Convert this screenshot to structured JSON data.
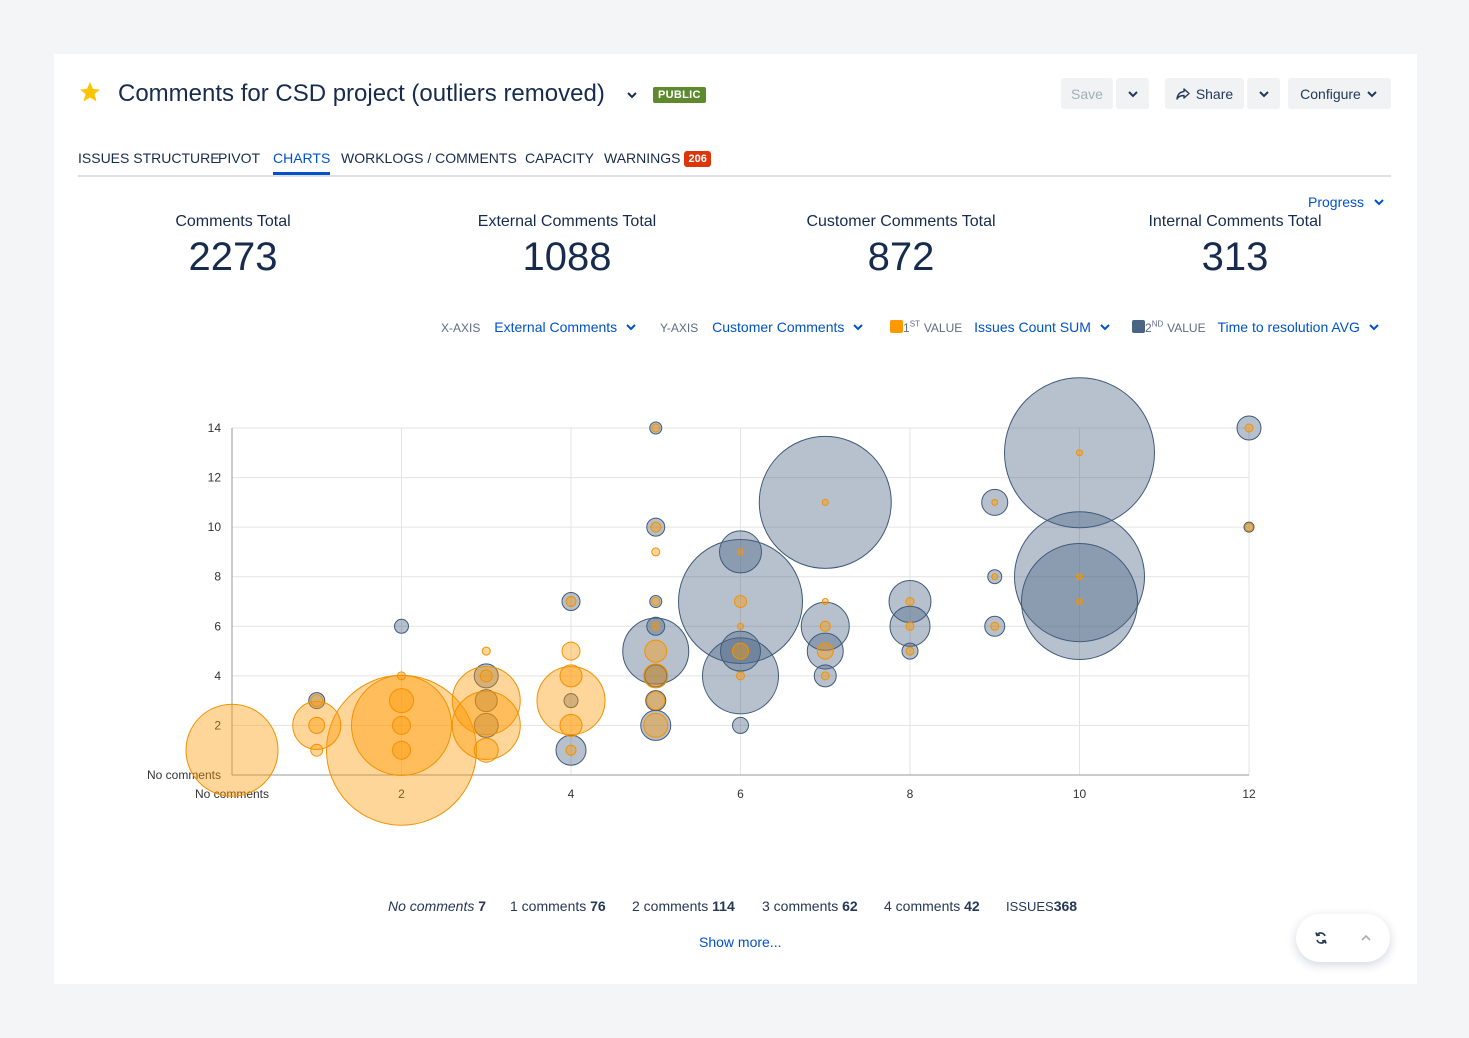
{
  "page": {
    "title": "Comments for CSD project (outliers removed)",
    "visibility_badge": "PUBLIC"
  },
  "toolbar": {
    "save_label": "Save",
    "share_label": "Share",
    "configure_label": "Configure"
  },
  "tabs": [
    {
      "label": "ISSUES STRUCTURE"
    },
    {
      "label": "PIVOT"
    },
    {
      "label": "CHARTS",
      "active": true
    },
    {
      "label": "WORKLOGS / COMMENTS"
    },
    {
      "label": "CAPACITY"
    },
    {
      "label": "WARNINGS",
      "badge": "206"
    }
  ],
  "view_selector": {
    "label": "Progress"
  },
  "stats": [
    {
      "label": "Comments Total",
      "value": "2273"
    },
    {
      "label": "External Comments Total",
      "value": "1088"
    },
    {
      "label": "Customer Comments Total",
      "value": "872"
    },
    {
      "label": "Internal Comments Total",
      "value": "313"
    }
  ],
  "axes_controls": {
    "x_caption": "X-AXIS",
    "x_value": "External Comments",
    "y_caption": "Y-AXIS",
    "y_value": "Customer Comments",
    "v1_num": "1",
    "v1_sup": "ST",
    "v1_caption": "VALUE",
    "v1_value": "Issues Count SUM",
    "v1_color": "#ff9900",
    "v2_num": "2",
    "v2_sup": "ND",
    "v2_caption": "VALUE",
    "v2_value": "Time to resolution AVG",
    "v2_color": "#4a6484"
  },
  "chart_data": {
    "type": "scatter",
    "subtype": "bubble",
    "xlim": [
      0,
      12
    ],
    "ylim": [
      0,
      14
    ],
    "x_ticks": [
      "No comments",
      "2",
      "4",
      "6",
      "8",
      "10",
      "12"
    ],
    "y_ticks": [
      "No comments",
      "2",
      "4",
      "6",
      "8",
      "10",
      "12",
      "14"
    ],
    "grid": true,
    "series": [
      {
        "name": "Time to resolution AVG",
        "color": "#4a6484",
        "points": [
          [
            1,
            3,
            8
          ],
          [
            2,
            6,
            7
          ],
          [
            3,
            4,
            12
          ],
          [
            3,
            3,
            11
          ],
          [
            3,
            2,
            12
          ],
          [
            4,
            7,
            9
          ],
          [
            4,
            1,
            15
          ],
          [
            4,
            3,
            7
          ],
          [
            5,
            14,
            6
          ],
          [
            5,
            10,
            9
          ],
          [
            5,
            7,
            6
          ],
          [
            5,
            6,
            9
          ],
          [
            5,
            5,
            33
          ],
          [
            5,
            4,
            11
          ],
          [
            5,
            3,
            10
          ],
          [
            5,
            2,
            15
          ],
          [
            6,
            9,
            21
          ],
          [
            6,
            7,
            62
          ],
          [
            6,
            5,
            20
          ],
          [
            6,
            4,
            38
          ],
          [
            6,
            2,
            8
          ],
          [
            7,
            11,
            66
          ],
          [
            7,
            6,
            24
          ],
          [
            7,
            5,
            18
          ],
          [
            7,
            4,
            11
          ],
          [
            8,
            7,
            21
          ],
          [
            8,
            6,
            20
          ],
          [
            8,
            5,
            8
          ],
          [
            9,
            11,
            13
          ],
          [
            9,
            8,
            7
          ],
          [
            9,
            6,
            10
          ],
          [
            10,
            13,
            75
          ],
          [
            10,
            8,
            65
          ],
          [
            10,
            7,
            58
          ],
          [
            12,
            14,
            12
          ],
          [
            12,
            10,
            5
          ]
        ]
      },
      {
        "name": "Issues Count SUM",
        "color": "#ff9900",
        "points": [
          [
            0,
            1,
            46
          ],
          [
            1,
            2,
            24
          ],
          [
            1,
            1,
            6
          ],
          [
            1,
            3,
            6
          ],
          [
            1,
            2,
            8
          ],
          [
            2,
            1,
            75
          ],
          [
            2,
            2,
            50
          ],
          [
            2,
            3,
            12
          ],
          [
            2,
            4,
            4
          ],
          [
            2,
            2,
            9
          ],
          [
            2,
            1,
            9
          ],
          [
            3,
            3,
            34
          ],
          [
            3,
            2,
            34
          ],
          [
            3,
            1,
            12
          ],
          [
            3,
            5,
            4
          ],
          [
            3,
            4,
            6
          ],
          [
            4,
            3,
            34
          ],
          [
            4,
            4,
            11
          ],
          [
            4,
            5,
            9
          ],
          [
            4,
            2,
            11
          ],
          [
            4,
            1,
            5
          ],
          [
            4,
            7,
            5
          ],
          [
            5,
            5,
            11
          ],
          [
            5,
            4,
            12
          ],
          [
            5,
            3,
            9
          ],
          [
            5,
            2,
            12
          ],
          [
            5,
            10,
            5
          ],
          [
            5,
            9,
            4
          ],
          [
            5,
            7,
            4
          ],
          [
            5,
            6,
            4
          ],
          [
            5,
            14,
            4
          ],
          [
            6,
            7,
            6
          ],
          [
            6,
            5,
            8
          ],
          [
            6,
            4,
            4
          ],
          [
            6,
            6,
            3
          ],
          [
            6,
            9,
            3
          ],
          [
            7,
            11,
            3
          ],
          [
            7,
            7,
            3
          ],
          [
            7,
            6,
            5
          ],
          [
            7,
            5,
            8
          ],
          [
            7,
            4,
            4
          ],
          [
            8,
            7,
            4
          ],
          [
            8,
            6,
            4
          ],
          [
            8,
            5,
            4
          ],
          [
            9,
            11,
            3
          ],
          [
            9,
            8,
            3
          ],
          [
            9,
            6,
            4
          ],
          [
            10,
            13,
            3
          ],
          [
            10,
            8,
            3
          ],
          [
            10,
            7,
            3
          ],
          [
            12,
            14,
            4
          ],
          [
            12,
            10,
            4
          ]
        ]
      }
    ]
  },
  "summary": [
    {
      "label": "No comments",
      "value": "7",
      "italic": true
    },
    {
      "label": "1 comments",
      "value": "76"
    },
    {
      "label": "2 comments",
      "value": "114"
    },
    {
      "label": "3 comments",
      "value": "62"
    },
    {
      "label": "4 comments",
      "value": "42"
    },
    {
      "label": "ISSUES",
      "value": "368"
    }
  ],
  "show_more": "Show more..."
}
